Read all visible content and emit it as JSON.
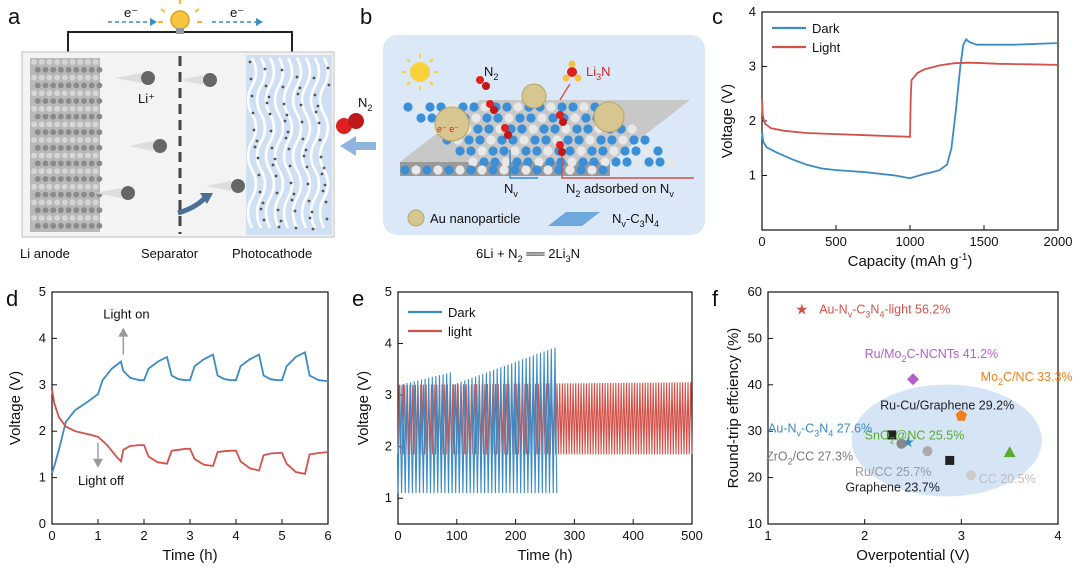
{
  "panels": {
    "a": {
      "letter": "a",
      "electron_left": "e⁻",
      "electron_right": "e⁻",
      "li_ion": "Li⁺",
      "n2": "N",
      "n2_sub": "2",
      "label_anode": "Li anode",
      "label_separator": "Separator",
      "label_cathode": "Photocathode",
      "colors": {
        "cathode_bg": "#cfe0f4",
        "anode": "#9a9a9a",
        "ball": "#5a5a5a",
        "n2_red": "#e02020"
      }
    },
    "b": {
      "letter": "b",
      "n2": "N",
      "n2_sub": "2",
      "product": "Li",
      "product_sub": "3",
      "product_end": "N",
      "vacancy": "N",
      "vacancy_sub": "v",
      "adsorbed": "N",
      "adsorbed_sub": "2",
      "adsorbed_rest": " adsorbed on N",
      "adsorbed_end": "v",
      "legend_au": "Au nanoparticle",
      "legend_support_a": "N",
      "legend_support_sub": "v",
      "legend_support_b": "-C",
      "legend_support_sub2": "3",
      "legend_support_c": "N",
      "legend_support_sub3": "4",
      "electrons": "e⁻ e⁻",
      "equation_a": "6Li + N",
      "equation_sub": "2",
      "equation_b": " ══ 2Li",
      "equation_sub2": "3",
      "equation_c": "N",
      "colors": {
        "box": "#dbe8f7",
        "au": "#d8c690",
        "n_atom": "#3a8fd6",
        "c_atom": "#e8e8e8",
        "n2": "#e02020"
      }
    }
  },
  "chart_data": [
    {
      "id": "c",
      "letter": "c",
      "type": "line",
      "xlabel": "Capacity (mAh g",
      "xlabel_sup": "-1",
      "xlabel_end": ")",
      "ylabel": "Voltage (V)",
      "xlim": [
        0,
        2000
      ],
      "ylim": [
        0,
        4
      ],
      "xticks": [
        0,
        500,
        1000,
        1500,
        2000
      ],
      "yticks": [
        1,
        2,
        3,
        4
      ],
      "legend_position": "top-left",
      "series": [
        {
          "name": "Dark",
          "color": "#3b8bc4",
          "x": [
            0,
            8,
            30,
            100,
            200,
            300,
            400,
            500,
            600,
            700,
            800,
            900,
            1000,
            1050,
            1100,
            1150,
            1200,
            1250,
            1280,
            1310,
            1340,
            1360,
            1380,
            1400,
            1450,
            1500,
            1600,
            1700,
            1800,
            1900,
            2000
          ],
          "y": [
            1.8,
            1.62,
            1.52,
            1.42,
            1.3,
            1.2,
            1.13,
            1.1,
            1.08,
            1.06,
            1.03,
            1.0,
            0.95,
            0.99,
            1.03,
            1.06,
            1.1,
            1.2,
            1.5,
            2.2,
            3.0,
            3.4,
            3.5,
            3.45,
            3.4,
            3.4,
            3.4,
            3.4,
            3.41,
            3.42,
            3.43
          ]
        },
        {
          "name": "Light",
          "color": "#d2524a",
          "x": [
            0,
            5,
            20,
            60,
            150,
            300,
            500,
            700,
            900,
            1000,
            1005,
            1010,
            1050,
            1100,
            1200,
            1300,
            1400,
            1500,
            1600,
            1800,
            2000
          ],
          "y": [
            2.4,
            2.1,
            1.95,
            1.87,
            1.82,
            1.78,
            1.76,
            1.74,
            1.72,
            1.71,
            2.4,
            2.75,
            2.88,
            2.95,
            3.02,
            3.06,
            3.07,
            3.06,
            3.05,
            3.04,
            3.03
          ]
        }
      ]
    },
    {
      "id": "d",
      "letter": "d",
      "type": "line",
      "xlabel": "Time (h)",
      "ylabel": "Voltage (V)",
      "xlim": [
        0,
        6
      ],
      "ylim": [
        0,
        5
      ],
      "xticks": [
        0,
        1,
        2,
        3,
        4,
        5,
        6
      ],
      "yticks": [
        0,
        1,
        2,
        3,
        4,
        5
      ],
      "annotation_on": "Light on",
      "annotation_off": "Light off",
      "series": [
        {
          "name": "",
          "color": "#3b8bc4",
          "x": [
            0,
            0.05,
            0.15,
            0.3,
            0.5,
            0.8,
            1.0,
            1.1,
            1.3,
            1.5,
            1.55,
            1.7,
            1.9,
            2.0,
            2.1,
            2.3,
            2.5,
            2.6,
            2.75,
            2.9,
            3.0,
            3.1,
            3.3,
            3.5,
            3.6,
            3.75,
            3.9,
            4.0,
            4.1,
            4.3,
            4.5,
            4.6,
            4.75,
            4.9,
            5.0,
            5.1,
            5.3,
            5.5,
            5.6,
            5.8,
            6.0
          ],
          "y": [
            1.1,
            1.25,
            1.6,
            2.2,
            2.45,
            2.65,
            2.8,
            3.1,
            3.35,
            3.5,
            3.3,
            3.15,
            3.1,
            3.1,
            3.35,
            3.5,
            3.6,
            3.2,
            3.12,
            3.1,
            3.1,
            3.4,
            3.55,
            3.65,
            3.2,
            3.12,
            3.1,
            3.1,
            3.4,
            3.55,
            3.65,
            3.2,
            3.12,
            3.1,
            3.1,
            3.4,
            3.6,
            3.7,
            3.2,
            3.1,
            3.08
          ]
        },
        {
          "name": "",
          "color": "#d2524a",
          "x": [
            0,
            0.05,
            0.15,
            0.3,
            0.5,
            0.8,
            1.0,
            1.2,
            1.4,
            1.5,
            1.55,
            1.7,
            1.9,
            2.0,
            2.1,
            2.3,
            2.5,
            2.6,
            2.75,
            2.9,
            3.0,
            3.1,
            3.3,
            3.5,
            3.6,
            3.75,
            3.9,
            4.0,
            4.1,
            4.3,
            4.5,
            4.6,
            4.75,
            4.9,
            5.0,
            5.1,
            5.3,
            5.5,
            5.6,
            5.8,
            6.0
          ],
          "y": [
            2.9,
            2.6,
            2.3,
            2.1,
            2.0,
            1.93,
            1.88,
            1.7,
            1.45,
            1.35,
            1.6,
            1.68,
            1.7,
            1.7,
            1.45,
            1.33,
            1.3,
            1.58,
            1.6,
            1.62,
            1.62,
            1.4,
            1.28,
            1.25,
            1.55,
            1.57,
            1.58,
            1.58,
            1.35,
            1.2,
            1.15,
            1.48,
            1.52,
            1.53,
            1.53,
            1.3,
            1.12,
            1.08,
            1.5,
            1.53,
            1.55
          ]
        }
      ]
    },
    {
      "id": "e",
      "letter": "e",
      "type": "line",
      "xlabel": "Time (h)",
      "ylabel": "Voltage (V)",
      "xlim": [
        0,
        500
      ],
      "ylim": [
        0.5,
        5
      ],
      "xticks": [
        0,
        100,
        200,
        300,
        400,
        500
      ],
      "yticks": [
        1,
        2,
        3,
        4,
        5
      ],
      "legend_position": "top-left",
      "series": [
        {
          "name": "Dark",
          "color": "#3b8bc4",
          "t_end": 270,
          "cycles": 44,
          "low": 1.1,
          "high_start": 3.2,
          "high_end": 3.95
        },
        {
          "name": "light",
          "color": "#d2524a",
          "t_end": 500,
          "cycles": 110,
          "low": 1.85,
          "high_start": 3.2,
          "high_end": 3.25
        }
      ]
    },
    {
      "id": "f",
      "letter": "f",
      "type": "scatter",
      "xlabel": "Overpotential (V)",
      "ylabel": "Round-trip effciency (%)",
      "xlim": [
        1,
        4
      ],
      "ylim": [
        10,
        60
      ],
      "xticks": [
        1,
        2,
        3,
        4
      ],
      "yticks": [
        10,
        20,
        30,
        40,
        50,
        60
      ],
      "points": [
        {
          "label": "Au-N",
          "sub": "v",
          "mid": "-C",
          "sub2": "3",
          "mid2": "N",
          "sub3": "4",
          "end": "-light 56.2%",
          "x": 1.35,
          "y": 56.2,
          "color": "#d2524a",
          "marker": "star",
          "label_dx": 0.18,
          "label_dy": 0
        },
        {
          "label": "Ru/Mo",
          "sub": "2",
          "mid": "C-NCNTs 41.2%",
          "sub2": "",
          "mid2": "",
          "sub3": "",
          "end": "",
          "x": 2.5,
          "y": 41.2,
          "color": "#b35fcf",
          "marker": "diamond",
          "label_dx": -0.5,
          "label_dy": 5.4
        },
        {
          "label": "Mo",
          "sub": "2",
          "mid": "C/NC 33.3%",
          "sub2": "",
          "mid2": "",
          "sub3": "",
          "end": "",
          "x": 3.0,
          "y": 33.3,
          "color": "#f07f1f",
          "marker": "pentagon",
          "label_dx": 0.2,
          "label_dy": 8.4
        },
        {
          "label": "Ru-Cu/Graphene 29.2%",
          "sub": "",
          "mid": "",
          "sub2": "",
          "mid2": "",
          "sub3": "",
          "end": "",
          "x": 2.28,
          "y": 29.2,
          "color": "#222222",
          "marker": "square",
          "label_dx": -0.12,
          "label_dy": 6.3
        },
        {
          "label": "Au-N",
          "sub": "v",
          "mid": "-C",
          "sub2": "3",
          "mid2": "N",
          "sub3": "4",
          "end": " 27.6%",
          "x": 2.45,
          "y": 27.6,
          "color": "#3b8bc4",
          "marker": "star",
          "label_dx": -1.45,
          "label_dy": 3.0
        },
        {
          "label": "SnO",
          "sub": "2",
          "mid": "@NC 25.5%",
          "sub2": "",
          "mid2": "",
          "sub3": "",
          "end": "",
          "x": 3.5,
          "y": 25.5,
          "color": "#5aac2f",
          "marker": "triangle",
          "label_dx": -1.5,
          "label_dy": 3.6
        },
        {
          "label": "ZrO",
          "sub": "2",
          "mid": "/CC 27.3%",
          "sub2": "",
          "mid2": "",
          "sub3": "",
          "end": "",
          "x": 2.38,
          "y": 27.3,
          "color": "#888888",
          "marker": "circle",
          "label_dx": -1.4,
          "label_dy": -2.8
        },
        {
          "label": "Ru/CC 25.7%",
          "sub": "",
          "mid": "",
          "sub2": "",
          "mid2": "",
          "sub3": "",
          "end": "",
          "x": 2.65,
          "y": 25.7,
          "color": "#aaaaaa",
          "marker": "circle",
          "label_dx": -0.75,
          "label_dy": -4.5
        },
        {
          "label": "Graphene 23.7%",
          "sub": "",
          "mid": "",
          "sub2": "",
          "mid2": "",
          "sub3": "",
          "end": "",
          "x": 2.88,
          "y": 23.7,
          "color": "#222222",
          "marker": "square",
          "label_dx": -1.08,
          "label_dy": -5.8
        },
        {
          "label": "CC 20.5%",
          "sub": "",
          "mid": "",
          "sub2": "",
          "mid2": "",
          "sub3": "",
          "end": "",
          "x": 3.1,
          "y": 20.5,
          "color": "#cccccc",
          "marker": "circle",
          "label_dx": 0.08,
          "label_dy": -0.8
        }
      ],
      "ellipse_color": "#cfe0f5"
    }
  ]
}
